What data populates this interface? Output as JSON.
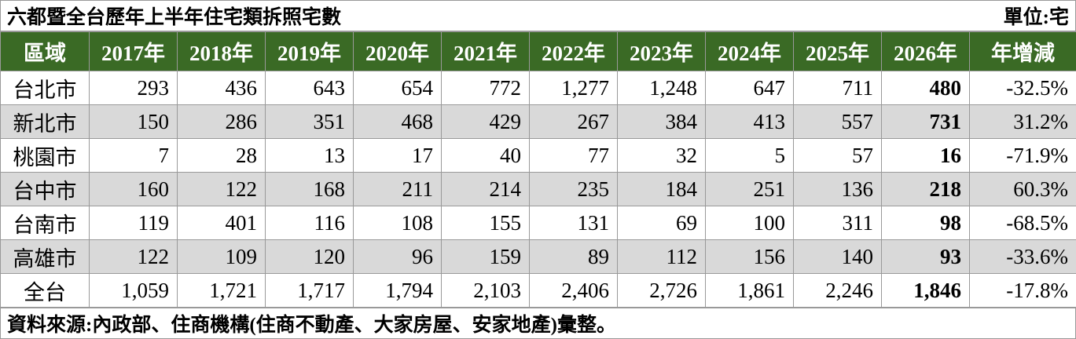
{
  "header": {
    "title": "六都暨全台歷年上半年住宅類拆照宅數",
    "unit": "單位:宅"
  },
  "table": {
    "columns": [
      "區域",
      "2017年",
      "2018年",
      "2019年",
      "2020年",
      "2021年",
      "2022年",
      "2023年",
      "2024年",
      "2025年",
      "2026年",
      "年增減"
    ],
    "rows": [
      [
        "台北市",
        "293",
        "436",
        "643",
        "654",
        "772",
        "1,277",
        "1,248",
        "647",
        "711",
        "480",
        "-32.5%"
      ],
      [
        "新北市",
        "150",
        "286",
        "351",
        "468",
        "429",
        "267",
        "384",
        "413",
        "557",
        "731",
        "31.2%"
      ],
      [
        "桃園市",
        "7",
        "28",
        "13",
        "17",
        "40",
        "77",
        "32",
        "5",
        "57",
        "16",
        "-71.9%"
      ],
      [
        "台中市",
        "160",
        "122",
        "168",
        "211",
        "214",
        "235",
        "184",
        "251",
        "136",
        "218",
        "60.3%"
      ],
      [
        "台南市",
        "119",
        "401",
        "116",
        "108",
        "155",
        "131",
        "69",
        "100",
        "311",
        "98",
        "-68.5%"
      ],
      [
        "高雄市",
        "122",
        "109",
        "120",
        "96",
        "159",
        "89",
        "112",
        "156",
        "140",
        "93",
        "-33.6%"
      ],
      [
        "全台",
        "1,059",
        "1,721",
        "1,717",
        "1,794",
        "2,103",
        "2,406",
        "2,726",
        "1,861",
        "2,246",
        "1,846",
        "-17.8%"
      ]
    ]
  },
  "footer": {
    "source": "資料來源:內政部、住商機構(住商不動產、大家房屋、安家地產)彙整。"
  }
}
